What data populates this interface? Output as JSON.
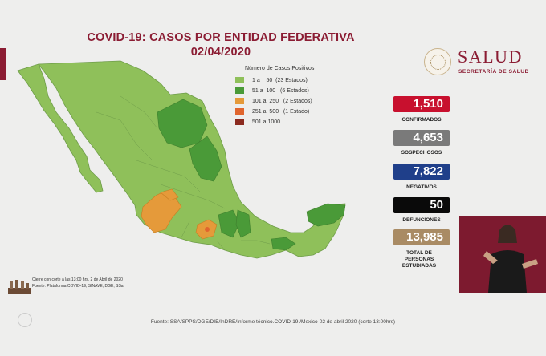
{
  "title": {
    "line1": "COVID-19: CASOS POR ENTIDAD FEDERATIVA",
    "line2": "02/04/2020"
  },
  "legend": {
    "title": "Número de Casos Positivos",
    "items": [
      {
        "label": "1 a    50  (23 Estados)",
        "color": "#8fc05a"
      },
      {
        "label": "51 a  100   (6 Estados)",
        "color": "#4a9a38"
      },
      {
        "label": "101 a  250   (2 Estados)",
        "color": "#e59a3a"
      },
      {
        "label": "251 a  500   (1 Estado)",
        "color": "#e0652e"
      },
      {
        "label": "501 a 1000",
        "color": "#8b2a1f"
      }
    ]
  },
  "logo": {
    "brand": "SALUD",
    "subtitle": "SECRETARÍA DE SALUD"
  },
  "stats": [
    {
      "value": "1,510",
      "label": "CONFIRMADOS",
      "color": "#c8102e"
    },
    {
      "value": "4,653",
      "label": "SOSPECHOSOS",
      "color": "#7a7a7a"
    },
    {
      "value": "7,822",
      "label": "NEGATIVOS",
      "color": "#1f3f8a"
    },
    {
      "value": "50",
      "label": "DEFUNCIONES",
      "color": "#0a0a0a"
    },
    {
      "value": "13,985",
      "label": "TOTAL DE PERSONAS ESTUDIADAS",
      "color": "#a98b64"
    }
  ],
  "notes": {
    "line1": "Cierre con corte a las 13:00 hrs, 2 de Abril de 2020",
    "line2": "Fuente: Plataforma COVID-19, SINAVE, DGE, SSa."
  },
  "source": "Fuente: SSA/SPPS/DGE/DIE/InDRE/Informe técnico.COVID-19 /Mexico-02 de abril 2020 (corte 13:00hrs)",
  "map_colors": {
    "base": "#8fc05a",
    "mid": "#4a9a38",
    "orange": "#e59a3a",
    "red_orange": "#e0652e",
    "border": "#6a9a45"
  }
}
